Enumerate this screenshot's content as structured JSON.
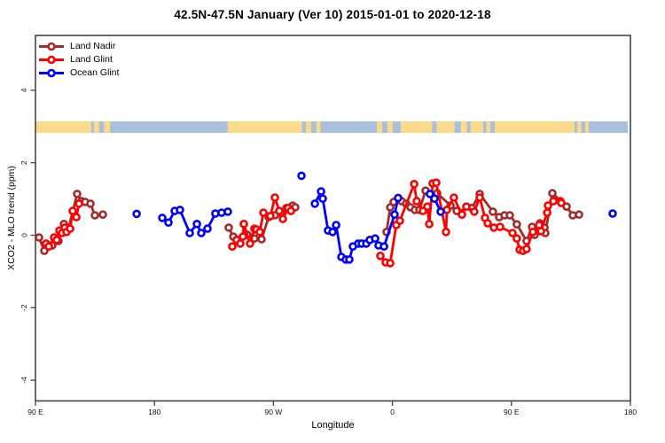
{
  "title": "42.5N-47.5N January (Ver 10)   2015-01-01 to 2020-12-18",
  "legend": [
    {
      "label": "Land Nadir",
      "color": "#A52A2A"
    },
    {
      "label": "Land Glint",
      "color": "#FF0000"
    },
    {
      "label": "Ocean Glint",
      "color": "#0000FF"
    }
  ],
  "map_strip": {
    "land_color": "#FBDA8C",
    "ocean_color": "#A9BFDC",
    "range_p": [
      0,
      448
    ],
    "land_segments_p": [
      [
        0,
        42.2
      ],
      [
        44.2,
        48.2
      ],
      [
        52.0,
        56.5
      ],
      [
        145.3,
        201.6
      ],
      [
        204.5,
        208.5
      ],
      [
        212.5,
        215.5
      ],
      [
        258.2,
        262.2
      ],
      [
        266.2,
        270.2
      ],
      [
        276.3,
        338.7
      ],
      [
        341.0,
        344.0
      ],
      [
        347.4,
        407.8
      ],
      [
        409.8,
        412.8
      ],
      [
        415.8,
        418.4
      ]
    ],
    "ocean_holes_p": [
      [
        300.0,
        303.4
      ],
      [
        317.0,
        321.7
      ],
      [
        326.4,
        329.1
      ]
    ]
  },
  "chart_data": {
    "type": "line",
    "title": "42.5N-47.5N January (Ver 10)   2015-01-01 to 2020-12-18",
    "x_axis": {
      "label": "Longitude",
      "range_p": [
        0,
        450
      ],
      "ticks": [
        {
          "p": 0,
          "label": "90 E"
        },
        {
          "p": 90,
          "label": "180"
        },
        {
          "p": 180,
          "label": "90 W"
        },
        {
          "p": 270,
          "label": "0"
        },
        {
          "p": 360,
          "label": "90 E"
        },
        {
          "p": 450,
          "label": "180"
        }
      ]
    },
    "y_axis": {
      "label": "XCO2 - MLO trend (ppm)",
      "range": [
        -4.6,
        5.5
      ],
      "ticks": [
        -4,
        -2,
        0,
        2,
        4
      ]
    },
    "series": [
      {
        "name": "Land Nadir",
        "color": "#A52A2A",
        "segments": [
          [
            [
              2.7,
              -0.06
            ],
            [
              6.7,
              -0.43
            ],
            [
              12.7,
              -0.28
            ],
            [
              17.4,
              -0.16
            ],
            [
              21.5,
              0.31
            ],
            [
              24.8,
              0.16
            ],
            [
              31.5,
              1.14
            ],
            [
              34.9,
              0.94
            ],
            [
              37.6,
              0.92
            ],
            [
              41.6,
              0.87
            ],
            [
              44.9,
              0.55
            ],
            [
              51.0,
              0.57
            ]
          ],
          [
            [
              146.2,
              0.21
            ],
            [
              149.6,
              -0.04
            ],
            [
              153.6,
              -0.13
            ],
            [
              160.3,
              0.01
            ],
            [
              165.6,
              -0.09
            ],
            [
              171.0,
              -0.11
            ],
            [
              176.4,
              0.5
            ],
            [
              181.1,
              0.55
            ],
            [
              185.8,
              0.62
            ],
            [
              189.8,
              0.75
            ],
            [
              194.5,
              0.82
            ],
            [
              196.5,
              0.77
            ]
          ],
          [
            [
              265.6,
              0.09
            ],
            [
              268.3,
              0.77
            ],
            [
              270.9,
              0.92
            ],
            [
              277.0,
              0.94
            ],
            [
              280.3,
              0.87
            ],
            [
              283.7,
              0.77
            ],
            [
              287.0,
              0.7
            ],
            [
              290.4,
              0.7
            ],
            [
              295.1,
              1.23
            ],
            [
              303.8,
              1.16
            ],
            [
              313.9,
              0.82
            ],
            [
              318.6,
              0.67
            ],
            [
              330.0,
              0.75
            ],
            [
              336.0,
              1.14
            ],
            [
              346.0,
              0.65
            ],
            [
              350.7,
              0.5
            ],
            [
              354.8,
              0.55
            ],
            [
              358.8,
              0.55
            ],
            [
              364.1,
              0.3
            ],
            [
              371.5,
              -0.16
            ],
            [
              375.6,
              0.23
            ],
            [
              377.6,
              0.01
            ],
            [
              381.6,
              0.33
            ],
            [
              385.0,
              0.21
            ],
            [
              385.6,
              0.06
            ],
            [
              391.0,
              1.16
            ],
            [
              401.7,
              0.79
            ],
            [
              406.4,
              0.55
            ],
            [
              411.1,
              0.57
            ]
          ]
        ]
      },
      {
        "name": "Land Glint",
        "color": "#FF0000",
        "segments": [
          [
            [
              8.0,
              -0.23
            ],
            [
              10.1,
              -0.31
            ],
            [
              14.1,
              -0.06
            ],
            [
              16.1,
              -0.13
            ],
            [
              18.1,
              0.13
            ],
            [
              20.1,
              0.06
            ],
            [
              22.1,
              0.21
            ],
            [
              23.5,
              0.09
            ],
            [
              26.2,
              0.18
            ],
            [
              28.2,
              0.67
            ],
            [
              30.9,
              0.5
            ],
            [
              32.9,
              0.87
            ]
          ],
          [
            [
              148.9,
              -0.31
            ],
            [
              152.2,
              -0.13
            ],
            [
              154.9,
              -0.23
            ],
            [
              156.9,
              -0.04
            ],
            [
              157.6,
              0.31
            ],
            [
              162.3,
              -0.23
            ],
            [
              165.6,
              0.18
            ],
            [
              167.0,
              0.16
            ],
            [
              169.7,
              0.09
            ],
            [
              172.4,
              0.62
            ],
            [
              177.7,
              0.53
            ],
            [
              181.1,
              1.04
            ],
            [
              184.4,
              0.67
            ],
            [
              187.1,
              0.45
            ],
            [
              191.1,
              0.75
            ],
            [
              193.2,
              0.67
            ]
          ],
          [
            [
              260.9,
              -0.57
            ],
            [
              264.9,
              -0.75
            ],
            [
              268.3,
              -0.77
            ],
            [
              272.9,
              0.28
            ],
            [
              275.6,
              0.4
            ],
            [
              286.4,
              1.41
            ],
            [
              288.4,
              0.94
            ],
            [
              293.1,
              0.67
            ],
            [
              296.4,
              0.79
            ],
            [
              297.8,
              0.31
            ],
            [
              300.4,
              1.43
            ],
            [
              303.1,
              1.45
            ],
            [
              310.5,
              0.09
            ],
            [
              311.2,
              0.7
            ],
            [
              316.5,
              1.04
            ],
            [
              322.6,
              0.57
            ],
            [
              325.9,
              0.79
            ],
            [
              331.9,
              0.65
            ],
            [
              336.0,
              1.04
            ],
            [
              340.0,
              0.48
            ],
            [
              342.0,
              0.33
            ],
            [
              346.7,
              0.21
            ],
            [
              351.4,
              0.23
            ],
            [
              360.8,
              0.06
            ],
            [
              364.1,
              -0.09
            ],
            [
              366.2,
              -0.4
            ],
            [
              368.8,
              -0.43
            ],
            [
              371.5,
              -0.38
            ],
            [
              376.2,
              0.09
            ],
            [
              380.9,
              0.28
            ],
            [
              382.3,
              0.11
            ],
            [
              387.0,
              0.62
            ],
            [
              387.6,
              0.82
            ],
            [
              391.7,
              0.94
            ],
            [
              397.0,
              0.94
            ],
            [
              397.7,
              0.89
            ]
          ]
        ]
      },
      {
        "name": "Ocean Glint",
        "color": "#0000FF",
        "segments": [
          [
            [
              76.5,
              0.59
            ]
          ],
          [
            [
              95.9,
              0.48
            ],
            [
              100.6,
              0.35
            ],
            [
              105.3,
              0.67
            ],
            [
              109.3,
              0.7
            ],
            [
              116.7,
              0.06
            ],
            [
              122.1,
              0.31
            ],
            [
              125.4,
              0.06
            ],
            [
              130.1,
              0.18
            ],
            [
              136.1,
              0.6
            ],
            [
              140.8,
              0.62
            ],
            [
              145.5,
              0.65
            ]
          ],
          [
            [
              201.2,
              1.64
            ]
          ],
          [
            [
              211.3,
              0.87
            ],
            [
              216.0,
              1.21
            ],
            [
              217.3,
              1.01
            ],
            [
              221.3,
              0.13
            ],
            [
              224.7,
              0.09
            ],
            [
              227.4,
              0.28
            ],
            [
              231.4,
              -0.6
            ],
            [
              234.7,
              -0.67
            ],
            [
              237.4,
              -0.67
            ],
            [
              240.1,
              -0.31
            ],
            [
              244.1,
              -0.23
            ],
            [
              246.8,
              -0.23
            ],
            [
              250.2,
              -0.23
            ],
            [
              252.8,
              -0.13
            ],
            [
              256.9,
              -0.09
            ],
            [
              259.5,
              -0.28
            ],
            [
              263.6,
              -0.31
            ],
            [
              271.6,
              0.57
            ],
            [
              274.3,
              1.03
            ]
          ],
          [
            [
              298.4,
              1.14
            ],
            [
              301.8,
              1.01
            ],
            [
              306.5,
              0.65
            ]
          ],
          [
            [
              436.6,
              0.6
            ]
          ]
        ]
      }
    ]
  }
}
